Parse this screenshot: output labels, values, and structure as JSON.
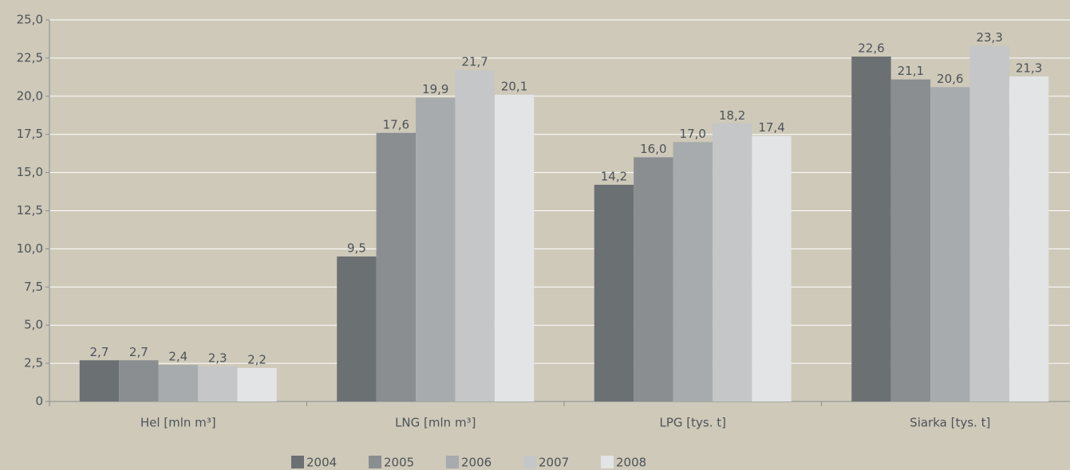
{
  "chart_data": {
    "type": "bar",
    "categories": [
      "Hel [mln m³]",
      "LNG [mln m³]",
      "LPG [tys. t]",
      "Siarka [tys. t]"
    ],
    "series": [
      {
        "name": "2004",
        "color": "#6b7073",
        "values": [
          2.7,
          9.5,
          14.2,
          22.6
        ],
        "value_labels": [
          "2,7",
          "9,5",
          "14,2",
          "22,6"
        ]
      },
      {
        "name": "2005",
        "color": "#8a8e91",
        "values": [
          2.7,
          17.6,
          16.0,
          21.1
        ],
        "value_labels": [
          "2,7",
          "17,6",
          "16,0",
          "21,1"
        ]
      },
      {
        "name": "2006",
        "color": "#a8abad",
        "values": [
          2.4,
          19.9,
          17.0,
          20.6
        ],
        "value_labels": [
          "2,4",
          "19,9",
          "17,0",
          "20,6"
        ]
      },
      {
        "name": "2007",
        "color": "#c4c6c7",
        "values": [
          2.3,
          21.7,
          18.2,
          23.3
        ],
        "value_labels": [
          "2,3",
          "21,7",
          "18,2",
          "23,3"
        ]
      },
      {
        "name": "2008",
        "color": "#e3e4e5",
        "values": [
          2.2,
          20.1,
          17.4,
          21.3
        ],
        "value_labels": [
          "2,2",
          "20,1",
          "17,4",
          "21,3"
        ]
      }
    ],
    "ylim": [
      0,
      25
    ],
    "yticks": [
      0,
      {
        "value": 2.5,
        "label": "2,5"
      },
      {
        "value": 5,
        "label": "5,0"
      },
      {
        "value": 7.5,
        "label": "7,5"
      },
      {
        "value": 10,
        "label": "10,0"
      },
      {
        "value": 12.5,
        "label": "12,5"
      },
      {
        "value": 15,
        "label": "15,0"
      },
      {
        "value": 17.5,
        "label": "17,5"
      },
      {
        "value": 20,
        "label": "20,0"
      },
      {
        "value": 22.5,
        "label": "22,5"
      },
      {
        "value": 25,
        "label": "25,0"
      }
    ],
    "grid": true
  }
}
